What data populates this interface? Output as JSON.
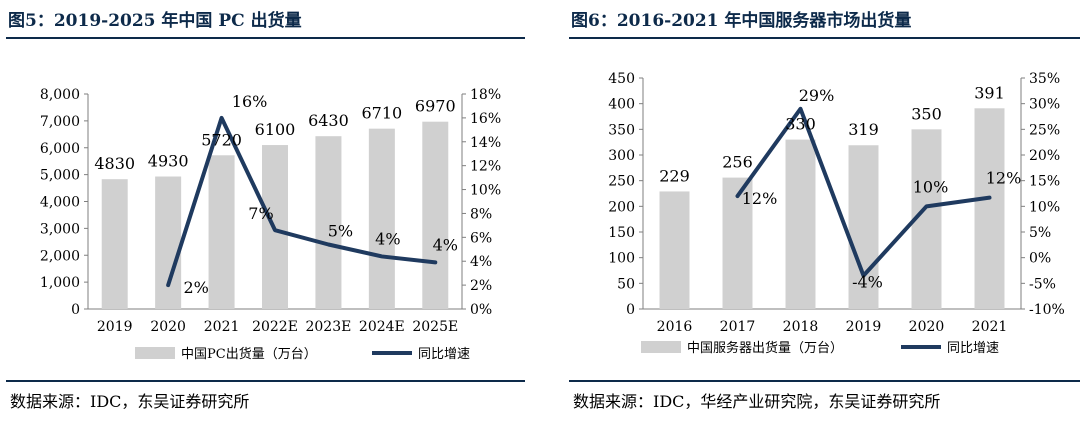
{
  "charts": [
    {
      "figure_title": "图5：2019-2025 年中国 PC 出货量",
      "source": "数据来源：IDC，东吴证券研究所",
      "colors": {
        "bar": "#d0d0d0",
        "line": "#1f3a5f",
        "title": "#0d2a4a"
      },
      "chart_data": {
        "type": "bar",
        "categories": [
          "2019",
          "2020",
          "2021",
          "2022E",
          "2023E",
          "2024E",
          "2025E"
        ],
        "series": [
          {
            "name": "中国PC出货量（万台）",
            "type": "bar",
            "axis": "left",
            "values": [
              4830,
              4930,
              5720,
              6100,
              6430,
              6710,
              6970
            ],
            "labels": [
              "4830",
              "4930",
              "5720",
              "6100",
              "6430",
              "6710",
              "6970"
            ]
          },
          {
            "name": "同比增速",
            "type": "line",
            "axis": "right",
            "values": [
              null,
              2,
              16,
              6.6,
              5.4,
              4.4,
              3.9
            ],
            "labels": [
              null,
              "2%",
              "16%",
              "7%",
              "5%",
              "4%",
              "4%"
            ]
          }
        ],
        "left_axis": {
          "min": 0,
          "max": 8000,
          "ticks": [
            "0",
            "1,000",
            "2,000",
            "3,000",
            "4,000",
            "5,000",
            "6,000",
            "7,000",
            "8,000"
          ]
        },
        "right_axis": {
          "min": 0,
          "max": 18,
          "ticks": [
            "0%",
            "2%",
            "4%",
            "6%",
            "8%",
            "10%",
            "12%",
            "14%",
            "16%",
            "18%"
          ]
        },
        "legend_position": "bottom",
        "grid": false
      }
    },
    {
      "figure_title": "图6：2016-2021 年中国服务器市场出货量",
      "source": "数据来源：IDC，华经产业研究院，东吴证券研究所",
      "colors": {
        "bar": "#d0d0d0",
        "line": "#1f3a5f",
        "title": "#0d2a4a"
      },
      "chart_data": {
        "type": "bar",
        "categories": [
          "2016",
          "2017",
          "2018",
          "2019",
          "2020",
          "2021"
        ],
        "series": [
          {
            "name": "中国服务器出货量（万台）",
            "type": "bar",
            "axis": "left",
            "values": [
              229,
              256,
              330,
              319,
              350,
              391
            ],
            "labels": [
              "229",
              "256",
              "330",
              "319",
              "350",
              "391"
            ]
          },
          {
            "name": "同比增速",
            "type": "line",
            "axis": "right",
            "values": [
              null,
              12,
              29,
              -3.5,
              10,
              11.7
            ],
            "labels": [
              null,
              "12%",
              "29%",
              "-4%",
              "10%",
              "12%"
            ]
          }
        ],
        "left_axis": {
          "min": 0,
          "max": 450,
          "ticks": [
            "0",
            "50",
            "100",
            "150",
            "200",
            "250",
            "300",
            "350",
            "400",
            "450"
          ]
        },
        "right_axis": {
          "min": -10,
          "max": 35,
          "ticks": [
            "-10%",
            "-5%",
            "0%",
            "5%",
            "10%",
            "15%",
            "20%",
            "25%",
            "30%",
            "35%"
          ]
        },
        "legend_position": "bottom",
        "grid": false
      }
    }
  ]
}
